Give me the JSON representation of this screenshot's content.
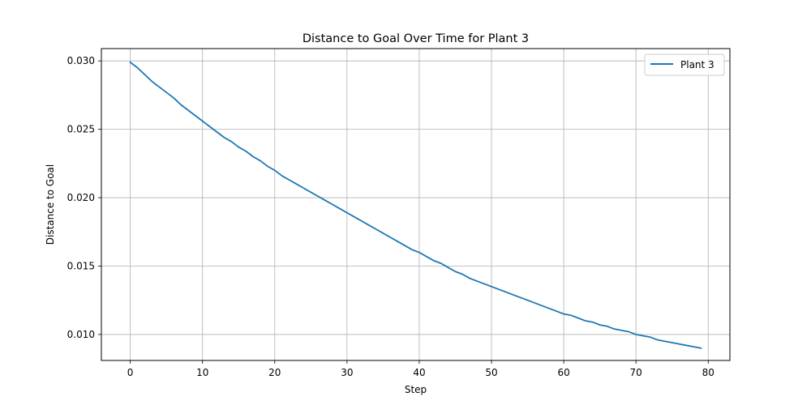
{
  "chart_data": {
    "type": "line",
    "title": "Distance to Goal Over Time for Plant 3",
    "xlabel": "Step",
    "ylabel": "Distance to Goal",
    "xlim": [
      -4,
      83
    ],
    "ylim": [
      0.0081,
      0.0309
    ],
    "xticks": [
      0,
      10,
      20,
      30,
      40,
      50,
      60,
      70,
      80
    ],
    "yticks": [
      0.01,
      0.015,
      0.02,
      0.025,
      0.03
    ],
    "ytick_labels": [
      "0.010",
      "0.015",
      "0.020",
      "0.025",
      "0.030"
    ],
    "grid": true,
    "legend_position": "top-right",
    "series": [
      {
        "name": "Plant 3",
        "color": "#1f77b4",
        "x": [
          0,
          1,
          2,
          3,
          4,
          5,
          6,
          7,
          8,
          9,
          10,
          11,
          12,
          13,
          14,
          15,
          16,
          17,
          18,
          19,
          20,
          21,
          22,
          23,
          24,
          25,
          26,
          27,
          28,
          29,
          30,
          31,
          32,
          33,
          34,
          35,
          36,
          37,
          38,
          39,
          40,
          41,
          42,
          43,
          44,
          45,
          46,
          47,
          48,
          49,
          50,
          51,
          52,
          53,
          54,
          55,
          56,
          57,
          58,
          59,
          60,
          61,
          62,
          63,
          64,
          65,
          66,
          67,
          68,
          69,
          70,
          71,
          72,
          73,
          74,
          75,
          76,
          77,
          78,
          79
        ],
        "y": [
          0.0299,
          0.0295,
          0.029,
          0.0285,
          0.0281,
          0.0277,
          0.0273,
          0.0268,
          0.0264,
          0.026,
          0.0256,
          0.0252,
          0.0248,
          0.0244,
          0.0241,
          0.0237,
          0.0234,
          0.023,
          0.0227,
          0.0223,
          0.022,
          0.0216,
          0.0213,
          0.021,
          0.0207,
          0.0204,
          0.0201,
          0.0198,
          0.0195,
          0.0192,
          0.0189,
          0.0186,
          0.0183,
          0.018,
          0.0177,
          0.0174,
          0.0171,
          0.0168,
          0.0165,
          0.0162,
          0.016,
          0.0157,
          0.0154,
          0.0152,
          0.0149,
          0.0146,
          0.0144,
          0.0141,
          0.0139,
          0.0137,
          0.0135,
          0.0133,
          0.0131,
          0.0129,
          0.0127,
          0.0125,
          0.0123,
          0.0121,
          0.0119,
          0.0117,
          0.0115,
          0.0114,
          0.0112,
          0.011,
          0.0109,
          0.0107,
          0.0106,
          0.0104,
          0.0103,
          0.0102,
          0.01,
          0.0099,
          0.0098,
          0.0096,
          0.0095,
          0.0094,
          0.0093,
          0.0092,
          0.0091,
          0.009
        ]
      }
    ]
  }
}
